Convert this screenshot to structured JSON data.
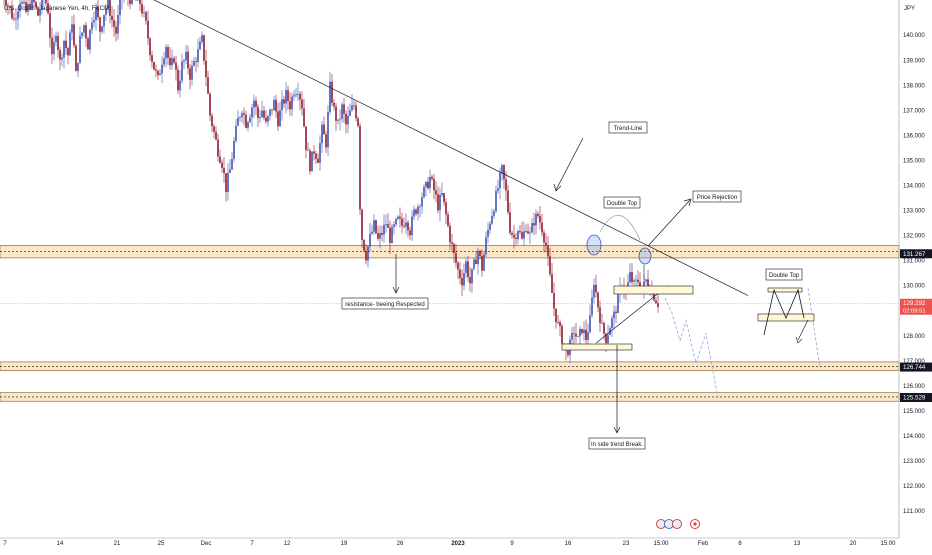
{
  "chart_title": "U.S. Dollar / Japanese Yen, 4h, FXCM",
  "currency_label": "JPY",
  "annotations": {
    "trend_line": "Trend-Line",
    "double_top_left": "Double Top",
    "price_rejection": "Price Rejection",
    "resistance": "resistance- beeing Respected",
    "trend_break": "In side trend Break.",
    "double_top_right": "Double Top"
  },
  "chart_data": {
    "type": "candlestick",
    "title": "U.S. Dollar / Japanese Yen, 4h, FXCM",
    "ylabel": "JPY",
    "ylim": [
      120.2,
      141.4
    ],
    "y_ticks": [
      121,
      122,
      123,
      124,
      125,
      126,
      127,
      128,
      129,
      130,
      131,
      132,
      133,
      134,
      135,
      136,
      137,
      138,
      139,
      140
    ],
    "x_ticks": [
      "7",
      "14",
      "21",
      "25",
      "Dec",
      "7",
      "12",
      "19",
      "26",
      "2023",
      "9",
      "16",
      "23",
      "15:00",
      "Feb",
      "6",
      "13",
      "20",
      "15:00"
    ],
    "price_labels": [
      {
        "value": 131.267,
        "text": "131.267",
        "style": "dark"
      },
      {
        "value": 129.292,
        "text": "129.292",
        "sub": "02:09:51",
        "style": "red"
      },
      {
        "value": 126.744,
        "text": "126.744",
        "style": "dark"
      },
      {
        "value": 125.529,
        "text": "125.529",
        "style": "dark"
      }
    ],
    "zones": [
      {
        "low": 131.1,
        "high": 131.6
      },
      {
        "low": 126.6,
        "high": 126.95
      },
      {
        "low": 125.38,
        "high": 125.72
      }
    ],
    "price_path": [
      [
        0,
        141.9
      ],
      [
        8,
        141.2
      ],
      [
        14,
        140.6
      ],
      [
        20,
        141.4
      ],
      [
        26,
        140.9
      ],
      [
        32,
        141.5
      ],
      [
        38,
        140.8
      ],
      [
        44,
        141.6
      ],
      [
        48,
        141.0
      ],
      [
        52,
        139.0
      ],
      [
        56,
        140.2
      ],
      [
        60,
        138.9
      ],
      [
        64,
        139.8
      ],
      [
        68,
        139.2
      ],
      [
        72,
        140.6
      ],
      [
        76,
        138.4
      ],
      [
        80,
        139.8
      ],
      [
        84,
        140.4
      ],
      [
        88,
        139.6
      ],
      [
        92,
        140.7
      ],
      [
        96,
        141.0
      ],
      [
        100,
        140.2
      ],
      [
        104,
        140.9
      ],
      [
        108,
        141.3
      ],
      [
        112,
        140.6
      ],
      [
        116,
        140.1
      ],
      [
        120,
        141.2
      ],
      [
        124,
        141.8
      ],
      [
        128,
        141.5
      ],
      [
        134,
        141.4
      ],
      [
        140,
        141.3
      ],
      [
        146,
        140.4
      ],
      [
        150,
        139.4
      ],
      [
        154,
        138.7
      ],
      [
        158,
        138.2
      ],
      [
        162,
        139.0
      ],
      [
        166,
        139.6
      ],
      [
        170,
        138.6
      ],
      [
        174,
        139.1
      ],
      [
        178,
        137.9
      ],
      [
        182,
        138.8
      ],
      [
        186,
        139.1
      ],
      [
        190,
        138.4
      ],
      [
        194,
        138.9
      ],
      [
        198,
        139.3
      ],
      [
        202,
        139.8
      ],
      [
        206,
        138.4
      ],
      [
        210,
        136.8
      ],
      [
        214,
        136.1
      ],
      [
        218,
        135.4
      ],
      [
        222,
        134.9
      ],
      [
        226,
        133.9
      ],
      [
        230,
        134.6
      ],
      [
        234,
        135.7
      ],
      [
        238,
        136.6
      ],
      [
        242,
        137.1
      ],
      [
        246,
        136.5
      ],
      [
        250,
        136.9
      ],
      [
        254,
        137.4
      ],
      [
        258,
        136.7
      ],
      [
        262,
        137.0
      ],
      [
        266,
        136.4
      ],
      [
        270,
        136.9
      ],
      [
        274,
        137.3
      ],
      [
        278,
        136.6
      ],
      [
        282,
        137.2
      ],
      [
        286,
        137.6
      ],
      [
        290,
        137.2
      ],
      [
        294,
        137.8
      ],
      [
        298,
        137.9
      ],
      [
        302,
        137.2
      ],
      [
        306,
        135.6
      ],
      [
        310,
        134.8
      ],
      [
        314,
        135.4
      ],
      [
        318,
        135.1
      ],
      [
        322,
        136.2
      ],
      [
        326,
        135.7
      ],
      [
        330,
        137.9
      ],
      [
        334,
        137.0
      ],
      [
        338,
        136.4
      ],
      [
        342,
        137.1
      ],
      [
        346,
        136.4
      ],
      [
        350,
        136.9
      ],
      [
        354,
        137.2
      ],
      [
        358,
        136.5
      ],
      [
        360,
        133.2
      ],
      [
        362,
        131.9
      ],
      [
        366,
        131.2
      ],
      [
        370,
        131.9
      ],
      [
        374,
        132.4
      ],
      [
        378,
        131.8
      ],
      [
        382,
        132.1
      ],
      [
        386,
        132.5
      ],
      [
        390,
        131.9
      ],
      [
        394,
        132.3
      ],
      [
        398,
        132.6
      ],
      [
        402,
        132.4
      ],
      [
        406,
        132.7
      ],
      [
        410,
        132.2
      ],
      [
        414,
        132.9
      ],
      [
        418,
        133.2
      ],
      [
        422,
        133.6
      ],
      [
        426,
        133.9
      ],
      [
        430,
        134.3
      ],
      [
        434,
        133.8
      ],
      [
        438,
        133.2
      ],
      [
        442,
        133.6
      ],
      [
        446,
        132.8
      ],
      [
        450,
        131.9
      ],
      [
        454,
        131.2
      ],
      [
        458,
        130.6
      ],
      [
        462,
        130.2
      ],
      [
        466,
        130.9
      ],
      [
        470,
        130.1
      ],
      [
        474,
        130.8
      ],
      [
        478,
        131.4
      ],
      [
        482,
        130.7
      ],
      [
        486,
        131.8
      ],
      [
        490,
        132.6
      ],
      [
        494,
        133.2
      ],
      [
        498,
        133.9
      ],
      [
        502,
        134.6
      ],
      [
        506,
        133.7
      ],
      [
        510,
        132.3
      ],
      [
        514,
        131.9
      ],
      [
        518,
        132.3
      ],
      [
        522,
        131.8
      ],
      [
        526,
        132.4
      ],
      [
        530,
        132.0
      ],
      [
        534,
        132.6
      ],
      [
        538,
        132.8
      ],
      [
        542,
        132.3
      ],
      [
        546,
        131.6
      ],
      [
        550,
        130.3
      ],
      [
        554,
        129.1
      ],
      [
        558,
        128.4
      ],
      [
        562,
        127.9
      ],
      [
        566,
        127.3
      ],
      [
        570,
        127.6
      ],
      [
        574,
        128.2
      ],
      [
        578,
        127.8
      ],
      [
        582,
        128.3
      ],
      [
        586,
        127.9
      ],
      [
        590,
        128.6
      ],
      [
        594,
        130.2
      ],
      [
        598,
        129.2
      ],
      [
        602,
        128.3
      ],
      [
        606,
        127.9
      ],
      [
        610,
        128.4
      ],
      [
        614,
        128.8
      ],
      [
        618,
        129.4
      ],
      [
        622,
        130.1
      ],
      [
        626,
        129.7
      ],
      [
        630,
        130.4
      ],
      [
        634,
        130.0
      ],
      [
        638,
        130.2
      ],
      [
        642,
        129.8
      ],
      [
        646,
        130.2
      ],
      [
        650,
        129.9
      ],
      [
        654,
        129.6
      ],
      [
        658,
        129.3
      ]
    ],
    "projections": [
      {
        "name": "projection-left",
        "points": [
          [
            665,
            129.5
          ],
          [
            672,
            128.9
          ],
          [
            680,
            127.8
          ],
          [
            686,
            128.6
          ],
          [
            696,
            126.9
          ],
          [
            706,
            128.1
          ],
          [
            718,
            125.5
          ]
        ]
      },
      {
        "name": "projection-right",
        "points": [
          [
            808,
            129.9
          ],
          [
            814,
            128.3
          ],
          [
            820,
            126.7
          ]
        ]
      }
    ],
    "trend_lines": [
      {
        "name": "main-trend-line",
        "points": [
          [
            144,
            141.6
          ],
          [
            748,
            129.6
          ]
        ]
      },
      {
        "name": "inside-trend-line",
        "points": [
          [
            596,
            127.7
          ],
          [
            668,
            130.0
          ]
        ]
      }
    ]
  }
}
